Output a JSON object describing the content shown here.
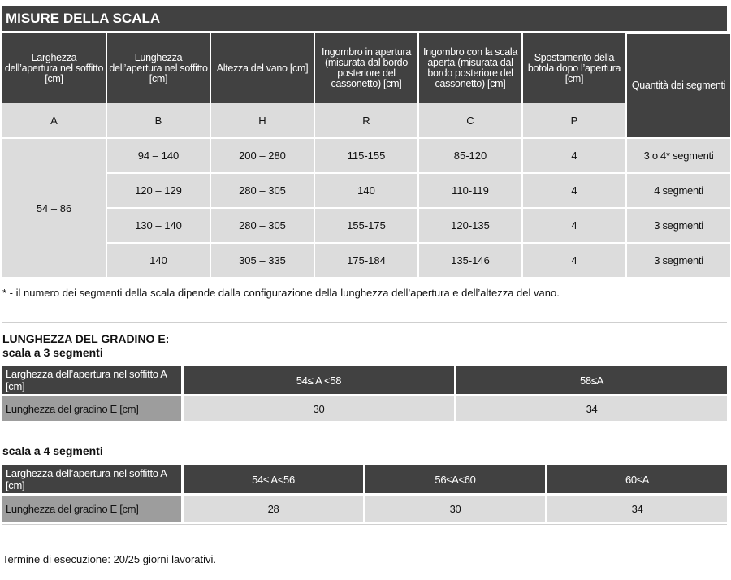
{
  "title": "MISURE DELLA SCALA",
  "headers": [
    "Larghezza dell’apertura nel soffitto [cm]",
    "Lunghezza dell’apertura nel soffitto [cm]",
    "Altezza del vano [cm]",
    "Ingombro in apertura (misurata dal bordo posteriore del cassonetto) [cm]",
    "Ingombro con la scala aperta (misurata dal bordo posteriore del cassonetto) [cm]",
    "Spostamento della botola dopo l’apertura [cm]",
    "Quantità dei segmenti"
  ],
  "letters": [
    "A",
    "B",
    "H",
    "R",
    "C",
    "P"
  ],
  "a_value": "54 – 86",
  "rows": [
    {
      "b": "94 – 140",
      "h": "200 – 280",
      "r": "115-155",
      "c": "85-120",
      "p": "4",
      "q": "3 o 4* segmenti"
    },
    {
      "b": "120 – 129",
      "h": "280 – 305",
      "r": "140",
      "c": "110-119",
      "p": "4",
      "q": "4 segmenti"
    },
    {
      "b": "130 – 140",
      "h": "280 – 305",
      "r": "155-175",
      "c": "120-135",
      "p": "4",
      "q": "3 segmenti"
    },
    {
      "b": "140",
      "h": "305 – 335",
      "r": "175-184",
      "c": "135-146",
      "p": "4",
      "q": "3 segmenti"
    }
  ],
  "footnote": "* -  il numero dei segmenti della scala dipende dalla configurazione della lunghezza dell’apertura e dell’altezza del vano.",
  "step_title": "LUNGHEZZA DEL GRADINO E:",
  "three_seg": {
    "subtitle": "scala a 3 segmenti",
    "row1_label": "Larghezza dell’apertura nel soffitto A [cm]",
    "row1_values": [
      "54≤ A <58",
      "58≤A"
    ],
    "row2_label": "Lunghezza del gradino E [cm]",
    "row2_values": [
      "30",
      "34"
    ]
  },
  "four_seg": {
    "subtitle": "scala a 4 segmenti",
    "row1_label": "Larghezza dell’apertura nel soffitto A [cm]",
    "row1_values": [
      "54≤ A<56",
      "56≤A<60",
      "60≤A"
    ],
    "row2_label": "Lunghezza del gradino E [cm]",
    "row2_values": [
      "28",
      "30",
      "34"
    ]
  },
  "end_note": "Termine di esecuzione: 20/25 giorni lavorativi."
}
